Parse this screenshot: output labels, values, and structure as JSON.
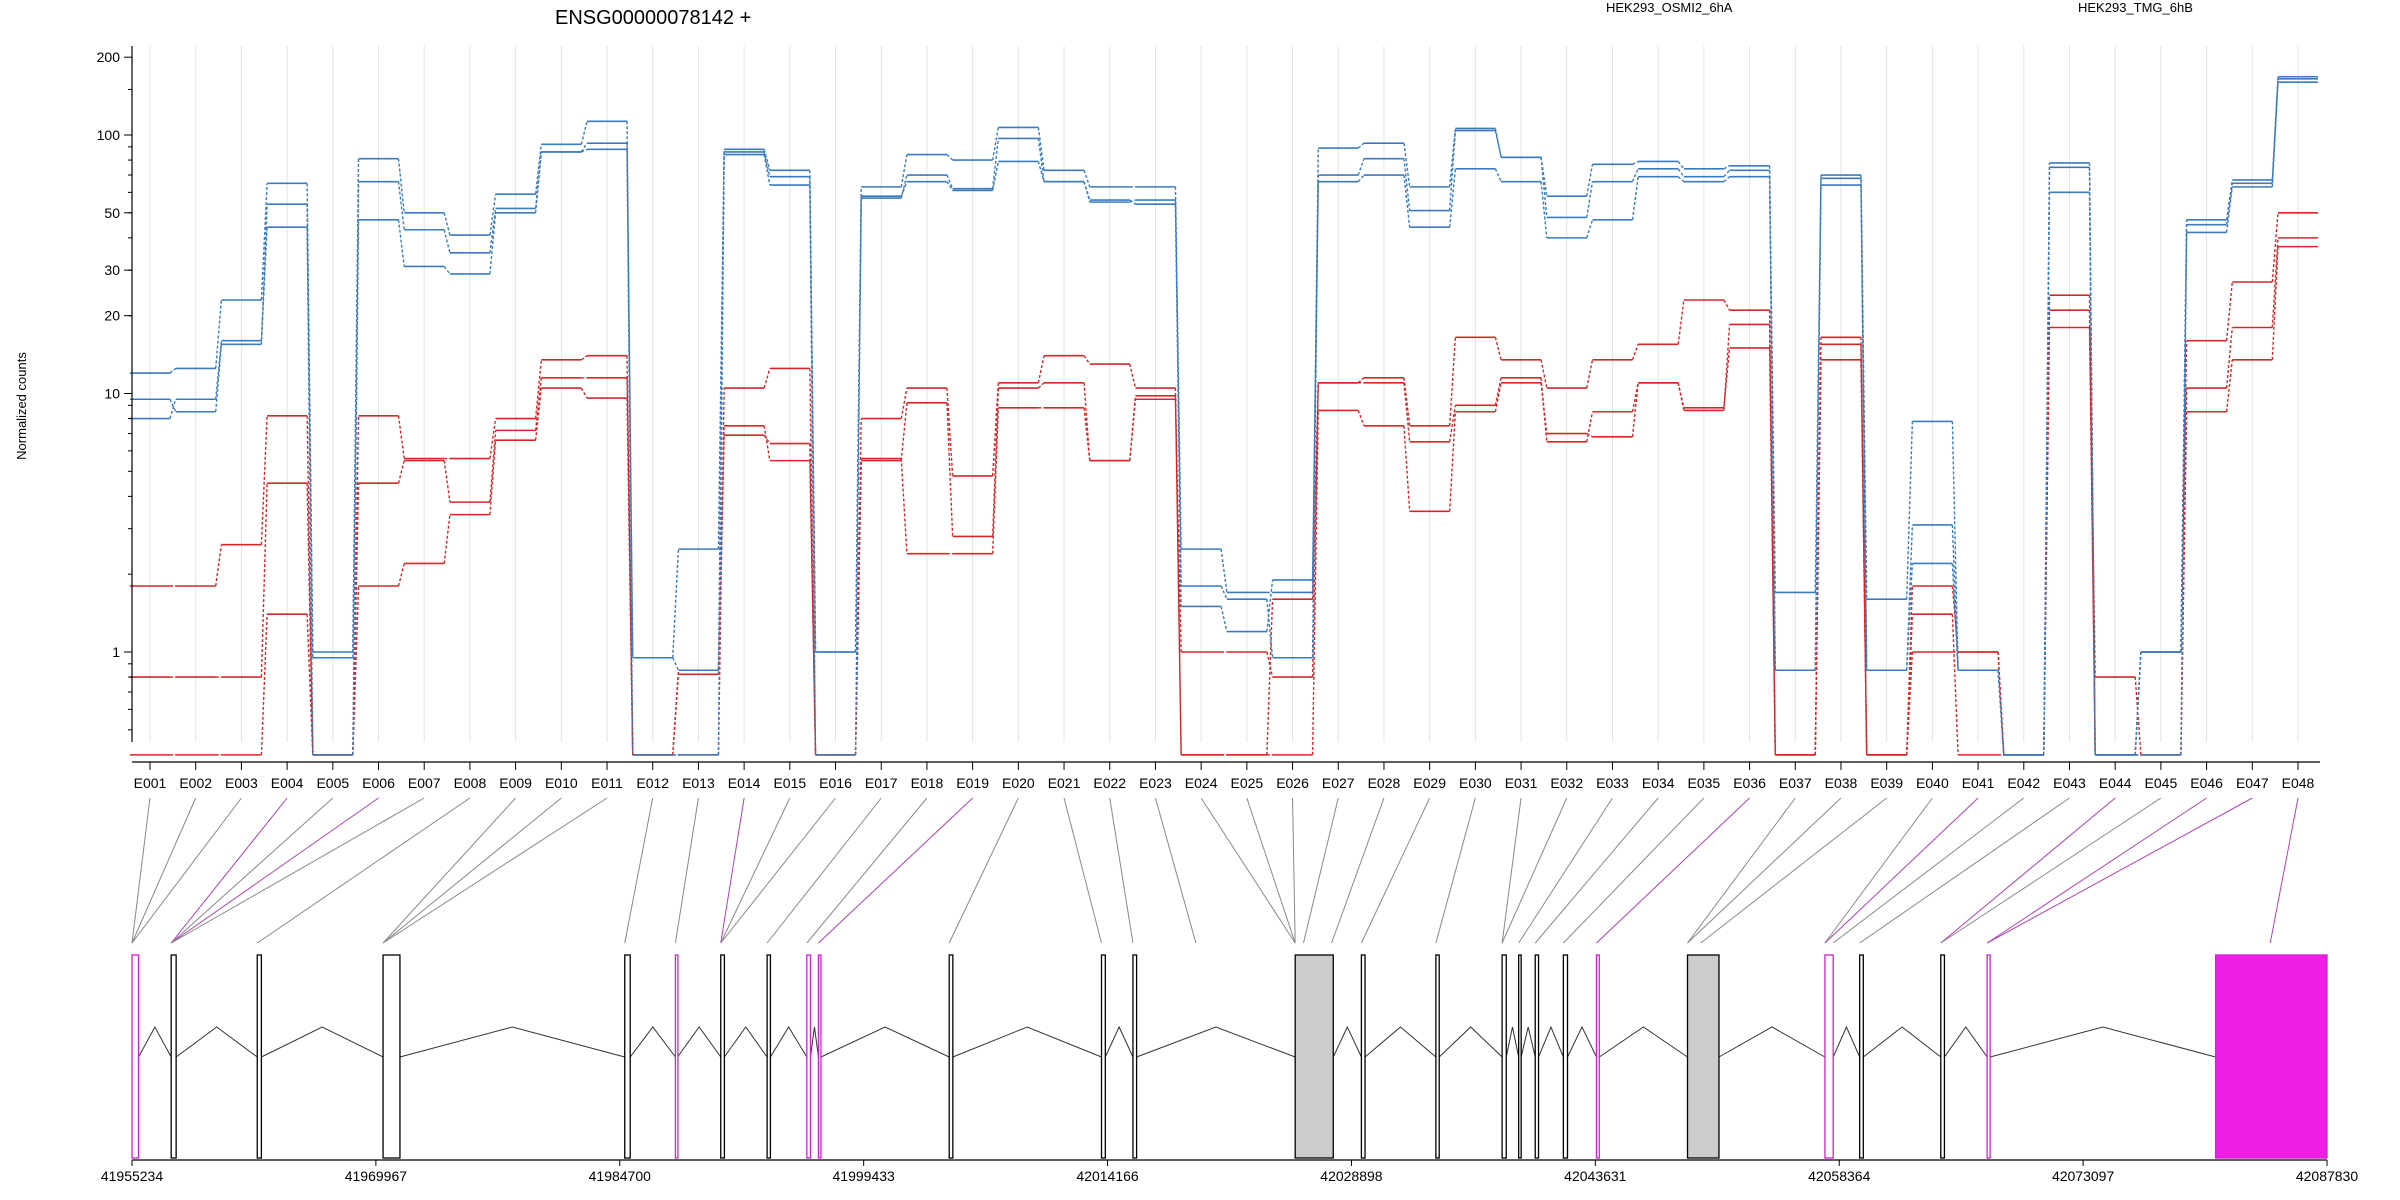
{
  "chart_data": {
    "type": "line",
    "title": "ENSG00000078142 +",
    "ylabel": "Normalized counts",
    "yscale": "log",
    "ylim": [
      0.4,
      200
    ],
    "yticks": [
      "1",
      "10",
      "20",
      "30",
      "50",
      "100",
      "200"
    ],
    "grid": true,
    "legend": "top-right",
    "categories": [
      "E001",
      "E002",
      "E003",
      "E004",
      "E005",
      "E006",
      "E007",
      "E008",
      "E009",
      "E010",
      "E011",
      "E012",
      "E013",
      "E014",
      "E015",
      "E016",
      "E017",
      "E018",
      "E019",
      "E020",
      "E021",
      "E022",
      "E023",
      "E024",
      "E025",
      "E026",
      "E027",
      "E028",
      "E029",
      "E030",
      "E031",
      "E032",
      "E033",
      "E034",
      "E035",
      "E036",
      "E037",
      "E038",
      "E039",
      "E040",
      "E041",
      "E042",
      "E043",
      "E044",
      "E045",
      "E046",
      "E047",
      "E048"
    ],
    "series": [
      {
        "name": "HEK293_OSMI2_6hA",
        "color": "#d62728",
        "lines": [
          [
            0.4,
            0.4,
            0.4,
            1.4,
            0.4,
            1.8,
            2.2,
            3.4,
            6.6,
            10.5,
            9.6,
            0.4,
            0.82,
            6.9,
            6.4,
            0.4,
            5.6,
            2.4,
            2.4,
            8.8,
            8.8,
            5.5,
            9.8,
            0.4,
            0.4,
            0.4,
            8.6,
            7.5,
            3.5,
            8.5,
            11,
            7,
            6.8,
            11,
            8.6,
            18.5,
            0.4,
            13.5,
            0.4,
            1.4,
            0.4,
            0.4,
            18,
            0.4,
            0.4,
            8.5,
            13.5,
            37
          ],
          [
            0.8,
            0.8,
            0.8,
            4.5,
            0.4,
            4.5,
            5.5,
            3.8,
            7.2,
            11.5,
            11.5,
            0.4,
            0.85,
            7.5,
            5.5,
            0.4,
            5.5,
            9.2,
            2.8,
            10.5,
            11,
            5.5,
            9.5,
            1.0,
            1.0,
            0.8,
            11,
            11,
            6.5,
            9,
            11.5,
            6.5,
            8.5,
            11,
            8.8,
            15,
            0.4,
            15.5,
            0.4,
            1.0,
            1.0,
            0.4,
            21,
            0.8,
            0.4,
            10.5,
            18,
            40
          ],
          [
            1.8,
            1.8,
            2.6,
            8.2,
            0.4,
            8.2,
            5.6,
            5.6,
            8.0,
            13.5,
            14,
            0.4,
            0.4,
            10.5,
            12.5,
            0.4,
            8.0,
            10.5,
            4.8,
            11,
            14,
            13,
            10.5,
            0.4,
            0.4,
            1.6,
            11,
            11.5,
            7.5,
            16.5,
            13.5,
            10.5,
            13.5,
            15.5,
            23,
            21,
            0.4,
            16.5,
            0.4,
            1.8,
            1.0,
            0.4,
            24,
            0.4,
            1.0,
            16,
            27,
            50
          ]
        ]
      },
      {
        "name": "HEK293_TMG_6hB",
        "color": "#3a7bbf",
        "lines": [
          [
            8,
            9.5,
            16,
            44,
            0.4,
            47,
            31,
            29,
            50,
            86,
            88,
            0.4,
            0.4,
            84,
            64,
            0.4,
            58,
            66,
            61,
            79,
            66,
            56,
            54,
            1.5,
            1.2,
            1.9,
            66,
            70,
            44,
            74,
            66,
            40,
            47,
            69,
            66,
            69,
            0.85,
            64,
            0.85,
            2.2,
            0.85,
            0.4,
            60,
            0.4,
            0.4,
            42,
            63,
            160
          ],
          [
            9.5,
            8.5,
            15.5,
            54,
            0.95,
            66,
            43,
            35,
            52,
            86,
            93,
            0.95,
            0.85,
            86,
            69,
            1.0,
            57,
            70,
            62,
            97,
            66,
            55,
            56,
            1.8,
            1.6,
            0.95,
            70,
            81,
            51,
            104,
            82,
            48,
            66,
            74,
            69,
            73,
            0.85,
            68,
            0.85,
            3.1,
            0.85,
            0.4,
            75,
            0.4,
            1.0,
            45,
            65,
            165
          ],
          [
            12,
            12.5,
            23,
            65,
            1.0,
            81,
            50,
            41,
            59,
            92,
            113,
            0.95,
            2.5,
            88,
            73,
            1.0,
            63,
            84,
            80,
            107,
            73,
            63,
            63,
            2.5,
            1.7,
            1.7,
            89,
            93,
            63,
            106,
            82,
            58,
            77,
            79,
            74,
            76,
            1.7,
            70,
            1.6,
            7.8,
            0.85,
            0.4,
            78,
            0.4,
            1.0,
            47,
            67,
            168
          ]
        ]
      }
    ],
    "genomic_axis": {
      "tick_labels": [
        "41955234",
        "41969967",
        "41984700",
        "41999433",
        "42014166",
        "42028898",
        "42043631",
        "42058364",
        "42073097",
        "42087830"
      ],
      "start": 41955234,
      "end": 42087830
    },
    "exon_regions": [
      {
        "start": 41955234,
        "end": 41955630,
        "fill": "#ffffff",
        "edge": "#d020d0"
      },
      {
        "start": 41957600,
        "end": 41957900,
        "fill": "#ffffff",
        "edge": "#000000"
      },
      {
        "start": 41962800,
        "end": 41963050,
        "fill": "#ffffff",
        "edge": "#000000"
      },
      {
        "start": 41970400,
        "end": 41971420,
        "fill": "#ffffff",
        "edge": "#000000"
      },
      {
        "start": 41985000,
        "end": 41985330,
        "fill": "#ffffff",
        "edge": "#000000"
      },
      {
        "start": 41988060,
        "end": 41988190,
        "fill": "#ffffff",
        "edge": "#d020d0"
      },
      {
        "start": 41990800,
        "end": 41991020,
        "fill": "#ffffff",
        "edge": "#000000"
      },
      {
        "start": 41993600,
        "end": 41993800,
        "fill": "#ffffff",
        "edge": "#000000"
      },
      {
        "start": 41996000,
        "end": 41996220,
        "fill": "#ffffff",
        "edge": "#d020d0"
      },
      {
        "start": 41996700,
        "end": 41996850,
        "fill": "#ffffff",
        "edge": "#d020d0"
      },
      {
        "start": 42004600,
        "end": 42004820,
        "fill": "#ffffff",
        "edge": "#000000"
      },
      {
        "start": 42013800,
        "end": 42014030,
        "fill": "#ffffff",
        "edge": "#000000"
      },
      {
        "start": 42015700,
        "end": 42015920,
        "fill": "#ffffff",
        "edge": "#000000"
      },
      {
        "start": 42025500,
        "end": 42027800,
        "fill": "#cccccc",
        "edge": "#000000"
      },
      {
        "start": 42029500,
        "end": 42029720,
        "fill": "#ffffff",
        "edge": "#000000"
      },
      {
        "start": 42034000,
        "end": 42034200,
        "fill": "#ffffff",
        "edge": "#000000"
      },
      {
        "start": 42038000,
        "end": 42038250,
        "fill": "#ffffff",
        "edge": "#000000"
      },
      {
        "start": 42039000,
        "end": 42039150,
        "fill": "#ffffff",
        "edge": "#000000"
      },
      {
        "start": 42040000,
        "end": 42040200,
        "fill": "#ffffff",
        "edge": "#000000"
      },
      {
        "start": 42041700,
        "end": 42041950,
        "fill": "#ffffff",
        "edge": "#000000"
      },
      {
        "start": 42043700,
        "end": 42043870,
        "fill": "#ffffff",
        "edge": "#d020d0"
      },
      {
        "start": 42049200,
        "end": 42051100,
        "fill": "#cccccc",
        "edge": "#000000"
      },
      {
        "start": 42057500,
        "end": 42058000,
        "fill": "#ffffff",
        "edge": "#d020d0"
      },
      {
        "start": 42059600,
        "end": 42059820,
        "fill": "#ffffff",
        "edge": "#000000"
      },
      {
        "start": 42064500,
        "end": 42064720,
        "fill": "#ffffff",
        "edge": "#000000"
      },
      {
        "start": 42067300,
        "end": 42067480,
        "fill": "#ffffff",
        "edge": "#d020d0"
      },
      {
        "start": 42081100,
        "end": 42087830,
        "fill": "#ee1ee6",
        "edge": "#d020d0"
      }
    ],
    "exon_links": [
      41955234,
      41955234,
      41955234,
      41957600,
      41957600,
      41957600,
      41957600,
      41962800,
      41970400,
      41970400,
      41970400,
      41985000,
      41988060,
      41990800,
      41990800,
      41990800,
      41993600,
      41996000,
      41996700,
      42004600,
      42013800,
      42015700,
      42019500,
      42025500,
      42025500,
      42025500,
      42026000,
      42027700,
      42029500,
      42034000,
      42038000,
      42038000,
      42039000,
      42040000,
      42041700,
      42043700,
      42049200,
      42049200,
      42050000,
      42057500,
      42057500,
      42058000,
      42059600,
      42064500,
      42064500,
      42067300,
      42067300,
      42084400
    ]
  }
}
